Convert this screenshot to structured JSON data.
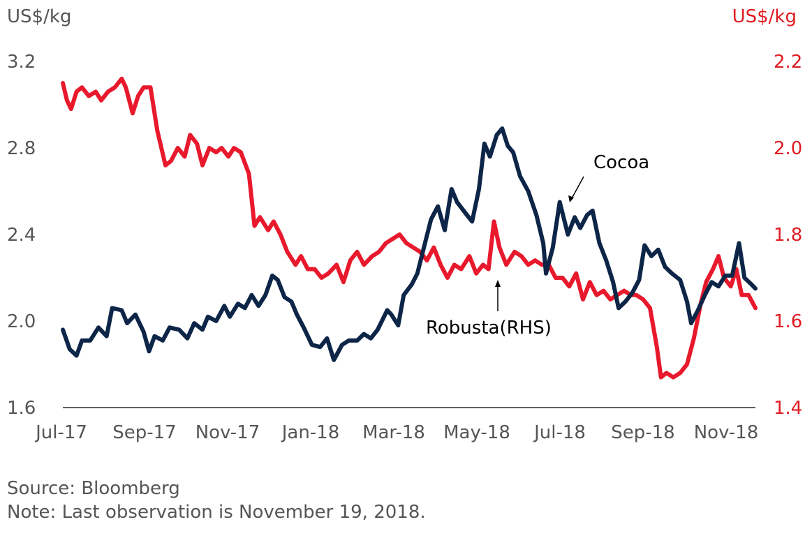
{
  "chart_data": {
    "type": "line",
    "unit_left": "US$/kg",
    "unit_right": "US$/kg",
    "y_left": {
      "range": [
        1.6,
        3.2
      ],
      "ticks": [
        "1.6",
        "2.0",
        "2.4",
        "2.8",
        "3.2"
      ]
    },
    "y_right": {
      "range": [
        1.4,
        2.2
      ],
      "ticks": [
        "1.4",
        "1.6",
        "1.8",
        "2.0",
        "2.2"
      ]
    },
    "x_ticks": [
      "Jul-17",
      "Sep-17",
      "Nov-17",
      "Jan-18",
      "Mar-18",
      "May-18",
      "Jul-18",
      "Sep-18",
      "Nov-18"
    ],
    "x_range": [
      "2017-07-01",
      "2018-11-19"
    ],
    "grid": false,
    "series": [
      {
        "name": "Cocoa",
        "axis": "left",
        "color": "#0d2547",
        "points": [
          [
            "2017-07-01",
            1.96
          ],
          [
            "2017-07-06",
            1.87
          ],
          [
            "2017-07-11",
            1.84
          ],
          [
            "2017-07-15",
            1.91
          ],
          [
            "2017-07-21",
            1.91
          ],
          [
            "2017-07-27",
            1.97
          ],
          [
            "2017-08-02",
            1.93
          ],
          [
            "2017-08-06",
            2.06
          ],
          [
            "2017-08-13",
            2.05
          ],
          [
            "2017-08-17",
            1.99
          ],
          [
            "2017-08-23",
            2.03
          ],
          [
            "2017-08-29",
            1.95
          ],
          [
            "2017-09-02",
            1.86
          ],
          [
            "2017-09-06",
            1.93
          ],
          [
            "2017-09-12",
            1.91
          ],
          [
            "2017-09-17",
            1.97
          ],
          [
            "2017-09-24",
            1.96
          ],
          [
            "2017-09-30",
            1.92
          ],
          [
            "2017-10-05",
            1.99
          ],
          [
            "2017-10-11",
            1.96
          ],
          [
            "2017-10-15",
            2.02
          ],
          [
            "2017-10-21",
            2.0
          ],
          [
            "2017-10-27",
            2.07
          ],
          [
            "2017-10-31",
            2.02
          ],
          [
            "2017-11-06",
            2.08
          ],
          [
            "2017-11-11",
            2.06
          ],
          [
            "2017-11-16",
            2.12
          ],
          [
            "2017-11-21",
            2.07
          ],
          [
            "2017-11-26",
            2.12
          ],
          [
            "2017-12-01",
            2.21
          ],
          [
            "2017-12-05",
            2.19
          ],
          [
            "2017-12-10",
            2.11
          ],
          [
            "2017-12-15",
            2.09
          ],
          [
            "2017-12-19",
            2.03
          ],
          [
            "2017-12-24",
            1.97
          ],
          [
            "2017-12-30",
            1.89
          ],
          [
            "2018-01-05",
            1.88
          ],
          [
            "2018-01-10",
            1.92
          ],
          [
            "2018-01-15",
            1.82
          ],
          [
            "2018-01-21",
            1.89
          ],
          [
            "2018-01-26",
            1.91
          ],
          [
            "2018-02-01",
            1.91
          ],
          [
            "2018-02-06",
            1.94
          ],
          [
            "2018-02-11",
            1.92
          ],
          [
            "2018-02-16",
            1.96
          ],
          [
            "2018-02-23",
            2.05
          ],
          [
            "2018-02-26",
            2.03
          ],
          [
            "2018-03-03",
            1.98
          ],
          [
            "2018-03-07",
            2.12
          ],
          [
            "2018-03-13",
            2.17
          ],
          [
            "2018-03-17",
            2.22
          ],
          [
            "2018-03-23",
            2.37
          ],
          [
            "2018-03-27",
            2.47
          ],
          [
            "2018-04-01",
            2.53
          ],
          [
            "2018-04-06",
            2.42
          ],
          [
            "2018-04-11",
            2.61
          ],
          [
            "2018-04-15",
            2.55
          ],
          [
            "2018-04-21",
            2.5
          ],
          [
            "2018-04-26",
            2.46
          ],
          [
            "2018-05-01",
            2.61
          ],
          [
            "2018-05-05",
            2.82
          ],
          [
            "2018-05-09",
            2.76
          ],
          [
            "2018-05-14",
            2.86
          ],
          [
            "2018-05-18",
            2.89
          ],
          [
            "2018-05-22",
            2.81
          ],
          [
            "2018-05-26",
            2.78
          ],
          [
            "2018-05-31",
            2.67
          ],
          [
            "2018-06-06",
            2.6
          ],
          [
            "2018-06-12",
            2.49
          ],
          [
            "2018-06-17",
            2.36
          ],
          [
            "2018-06-19",
            2.22
          ],
          [
            "2018-06-24",
            2.34
          ],
          [
            "2018-06-29",
            2.55
          ],
          [
            "2018-07-05",
            2.4
          ],
          [
            "2018-07-10",
            2.48
          ],
          [
            "2018-07-14",
            2.43
          ],
          [
            "2018-07-19",
            2.49
          ],
          [
            "2018-07-23",
            2.51
          ],
          [
            "2018-07-28",
            2.36
          ],
          [
            "2018-08-02",
            2.28
          ],
          [
            "2018-08-07",
            2.18
          ],
          [
            "2018-08-11",
            2.06
          ],
          [
            "2018-08-16",
            2.09
          ],
          [
            "2018-08-21",
            2.13
          ],
          [
            "2018-08-26",
            2.19
          ],
          [
            "2018-08-30",
            2.35
          ],
          [
            "2018-09-04",
            2.3
          ],
          [
            "2018-09-09",
            2.33
          ],
          [
            "2018-09-14",
            2.25
          ],
          [
            "2018-09-19",
            2.22
          ],
          [
            "2018-09-25",
            2.19
          ],
          [
            "2018-09-30",
            2.09
          ],
          [
            "2018-10-03",
            1.99
          ],
          [
            "2018-10-08",
            2.05
          ],
          [
            "2018-10-13",
            2.12
          ],
          [
            "2018-10-18",
            2.18
          ],
          [
            "2018-10-23",
            2.16
          ],
          [
            "2018-10-28",
            2.21
          ],
          [
            "2018-11-02",
            2.21
          ],
          [
            "2018-11-07",
            2.36
          ],
          [
            "2018-11-11",
            2.2
          ],
          [
            "2018-11-16",
            2.17
          ],
          [
            "2018-11-19",
            2.15
          ]
        ]
      },
      {
        "name": "Robusta(RHS)",
        "axis": "right",
        "color": "#e8192c",
        "points": [
          [
            "2017-07-01",
            2.15
          ],
          [
            "2017-07-04",
            2.11
          ],
          [
            "2017-07-07",
            2.09
          ],
          [
            "2017-07-11",
            2.13
          ],
          [
            "2017-07-15",
            2.14
          ],
          [
            "2017-07-20",
            2.12
          ],
          [
            "2017-07-25",
            2.13
          ],
          [
            "2017-07-29",
            2.11
          ],
          [
            "2017-08-03",
            2.13
          ],
          [
            "2017-08-08",
            2.14
          ],
          [
            "2017-08-13",
            2.16
          ],
          [
            "2017-08-16",
            2.14
          ],
          [
            "2017-08-21",
            2.08
          ],
          [
            "2017-08-25",
            2.12
          ],
          [
            "2017-08-29",
            2.14
          ],
          [
            "2017-09-03",
            2.14
          ],
          [
            "2017-09-08",
            2.04
          ],
          [
            "2017-09-14",
            1.96
          ],
          [
            "2017-09-18",
            1.97
          ],
          [
            "2017-09-23",
            2.0
          ],
          [
            "2017-09-28",
            1.98
          ],
          [
            "2017-10-02",
            2.03
          ],
          [
            "2017-10-07",
            2.01
          ],
          [
            "2017-10-11",
            1.96
          ],
          [
            "2017-10-16",
            2.0
          ],
          [
            "2017-10-21",
            1.99
          ],
          [
            "2017-10-25",
            2.0
          ],
          [
            "2017-10-30",
            1.98
          ],
          [
            "2017-11-03",
            2.0
          ],
          [
            "2017-11-08",
            1.99
          ],
          [
            "2017-11-14",
            1.94
          ],
          [
            "2017-11-18",
            1.82
          ],
          [
            "2017-11-22",
            1.84
          ],
          [
            "2017-11-28",
            1.81
          ],
          [
            "2017-12-02",
            1.83
          ],
          [
            "2017-12-07",
            1.8
          ],
          [
            "2017-12-12",
            1.76
          ],
          [
            "2017-12-18",
            1.73
          ],
          [
            "2017-12-22",
            1.75
          ],
          [
            "2017-12-27",
            1.72
          ],
          [
            "2018-01-01",
            1.72
          ],
          [
            "2018-01-06",
            1.7
          ],
          [
            "2018-01-11",
            1.71
          ],
          [
            "2018-01-17",
            1.73
          ],
          [
            "2018-01-22",
            1.69
          ],
          [
            "2018-01-27",
            1.74
          ],
          [
            "2018-02-01",
            1.76
          ],
          [
            "2018-02-06",
            1.73
          ],
          [
            "2018-02-12",
            1.75
          ],
          [
            "2018-02-17",
            1.76
          ],
          [
            "2018-02-22",
            1.78
          ],
          [
            "2018-02-27",
            1.79
          ],
          [
            "2018-03-04",
            1.8
          ],
          [
            "2018-03-09",
            1.78
          ],
          [
            "2018-03-14",
            1.77
          ],
          [
            "2018-03-19",
            1.76
          ],
          [
            "2018-03-24",
            1.74
          ],
          [
            "2018-03-29",
            1.77
          ],
          [
            "2018-04-03",
            1.73
          ],
          [
            "2018-04-08",
            1.7
          ],
          [
            "2018-04-13",
            1.73
          ],
          [
            "2018-04-18",
            1.72
          ],
          [
            "2018-04-24",
            1.75
          ],
          [
            "2018-04-29",
            1.71
          ],
          [
            "2018-05-04",
            1.73
          ],
          [
            "2018-05-08",
            1.72
          ],
          [
            "2018-05-12",
            1.83
          ],
          [
            "2018-05-16",
            1.77
          ],
          [
            "2018-05-21",
            1.73
          ],
          [
            "2018-05-27",
            1.76
          ],
          [
            "2018-06-01",
            1.75
          ],
          [
            "2018-06-06",
            1.73
          ],
          [
            "2018-06-11",
            1.74
          ],
          [
            "2018-06-16",
            1.73
          ],
          [
            "2018-06-21",
            1.73
          ],
          [
            "2018-06-26",
            1.7
          ],
          [
            "2018-07-01",
            1.7
          ],
          [
            "2018-07-06",
            1.68
          ],
          [
            "2018-07-11",
            1.71
          ],
          [
            "2018-07-16",
            1.65
          ],
          [
            "2018-07-21",
            1.69
          ],
          [
            "2018-07-26",
            1.66
          ],
          [
            "2018-07-31",
            1.67
          ],
          [
            "2018-08-05",
            1.65
          ],
          [
            "2018-08-10",
            1.66
          ],
          [
            "2018-08-15",
            1.67
          ],
          [
            "2018-08-20",
            1.66
          ],
          [
            "2018-08-24",
            1.66
          ],
          [
            "2018-08-29",
            1.65
          ],
          [
            "2018-09-03",
            1.63
          ],
          [
            "2018-09-08",
            1.54
          ],
          [
            "2018-09-11",
            1.47
          ],
          [
            "2018-09-15",
            1.48
          ],
          [
            "2018-09-20",
            1.47
          ],
          [
            "2018-09-25",
            1.48
          ],
          [
            "2018-09-30",
            1.5
          ],
          [
            "2018-10-05",
            1.56
          ],
          [
            "2018-10-10",
            1.64
          ],
          [
            "2018-10-14",
            1.69
          ],
          [
            "2018-10-19",
            1.72
          ],
          [
            "2018-10-23",
            1.75
          ],
          [
            "2018-10-27",
            1.7
          ],
          [
            "2018-11-01",
            1.68
          ],
          [
            "2018-11-05",
            1.72
          ],
          [
            "2018-11-09",
            1.66
          ],
          [
            "2018-11-14",
            1.66
          ],
          [
            "2018-11-19",
            1.63
          ]
        ]
      }
    ],
    "annotations": [
      {
        "text": "Cocoa",
        "series": "Cocoa"
      },
      {
        "text": "Robusta(RHS)",
        "series": "Robusta(RHS)"
      }
    ]
  },
  "notes": {
    "source": "Source: Bloomberg",
    "last_observation": "Note: Last observation is November 19, 2018."
  }
}
